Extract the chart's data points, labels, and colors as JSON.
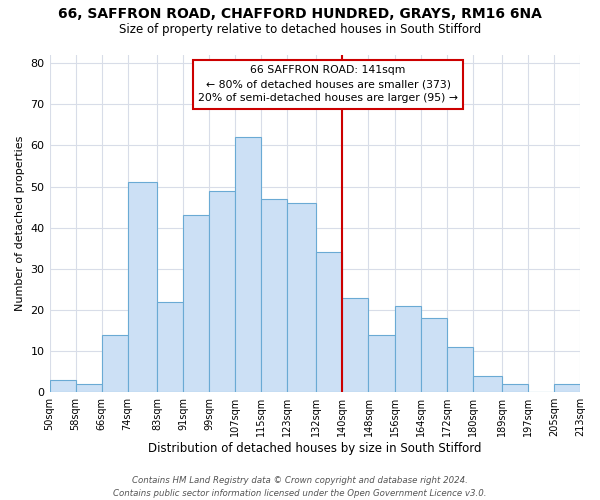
{
  "title1": "66, SAFFRON ROAD, CHAFFORD HUNDRED, GRAYS, RM16 6NA",
  "title2": "Size of property relative to detached houses in South Stifford",
  "xlabel": "Distribution of detached houses by size in South Stifford",
  "ylabel": "Number of detached properties",
  "bar_labels": [
    "50sqm",
    "58sqm",
    "66sqm",
    "74sqm",
    "83sqm",
    "91sqm",
    "99sqm",
    "107sqm",
    "115sqm",
    "123sqm",
    "132sqm",
    "140sqm",
    "148sqm",
    "156sqm",
    "164sqm",
    "172sqm",
    "180sqm",
    "189sqm",
    "197sqm",
    "205sqm",
    "213sqm"
  ],
  "bar_heights": [
    3,
    2,
    14,
    51,
    22,
    43,
    49,
    62,
    47,
    46,
    34,
    23,
    14,
    21,
    18,
    11,
    4,
    2,
    0,
    2
  ],
  "bar_color": "#cce0f5",
  "bar_edge_color": "#6aaad4",
  "vline_x": 140,
  "vline_color": "#cc0000",
  "annotation_line1": "66 SAFFRON ROAD: 141sqm",
  "annotation_line2": "← 80% of detached houses are smaller (373)",
  "annotation_line3": "20% of semi-detached houses are larger (95) →",
  "annotation_box_edge_color": "#cc0000",
  "ylim": [
    0,
    82
  ],
  "yticks": [
    0,
    10,
    20,
    30,
    40,
    50,
    60,
    70,
    80
  ],
  "footer_line1": "Contains HM Land Registry data © Crown copyright and database right 2024.",
  "footer_line2": "Contains public sector information licensed under the Open Government Licence v3.0.",
  "bg_color": "#ffffff",
  "plot_bg_color": "#ffffff",
  "grid_color": "#d8dde8"
}
